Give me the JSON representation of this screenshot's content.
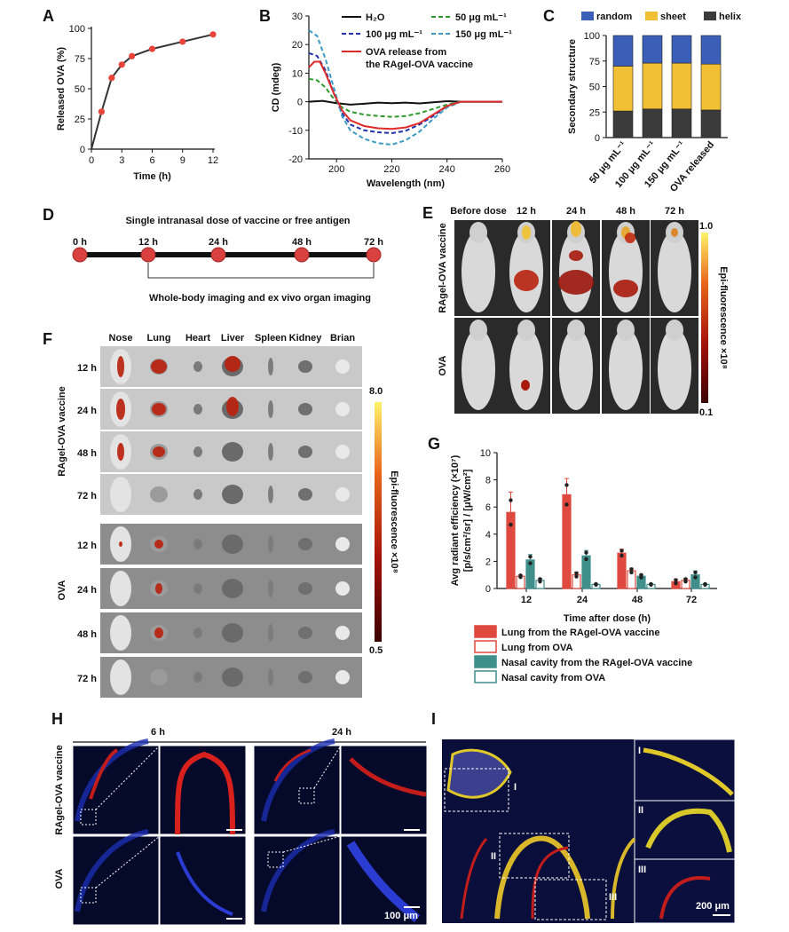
{
  "panel_labels": {
    "a": "A",
    "b": "B",
    "c": "C",
    "d": "D",
    "e": "E",
    "f": "F",
    "g": "G",
    "h": "H",
    "i": "I"
  },
  "chart_data": [
    {
      "panel": "A",
      "type": "line",
      "xlabel": "Time (h)",
      "ylabel": "Released OVA (%)",
      "xlim": [
        0,
        12
      ],
      "ylim": [
        0,
        100
      ],
      "xticks": [
        0,
        3,
        6,
        9,
        12
      ],
      "yticks": [
        0,
        25,
        50,
        75,
        100
      ],
      "x": [
        0,
        1,
        2,
        3,
        4,
        6,
        9,
        12
      ],
      "y": [
        0,
        31,
        59,
        70,
        77,
        83,
        89,
        95
      ],
      "marker_color": "#e8443a",
      "line_color": "#333333"
    },
    {
      "panel": "B",
      "type": "line",
      "xlabel": "Wavelength (nm)",
      "ylabel": "CD (mdeg)",
      "xlim": [
        190,
        260
      ],
      "ylim": [
        -20,
        30
      ],
      "xticks": [
        200,
        220,
        240,
        260
      ],
      "yticks": [
        -20,
        -10,
        0,
        10,
        20,
        30
      ],
      "legend": [
        "H₂O",
        "50 μg mL⁻¹",
        "100 μg mL⁻¹",
        "150 μg mL⁻¹",
        "OVA release from",
        "the RAgel-OVA vaccine"
      ],
      "series": [
        {
          "name": "H₂O",
          "color": "#111111",
          "dash": false,
          "x": [
            190,
            195,
            200,
            205,
            210,
            215,
            220,
            225,
            230,
            235,
            240,
            245,
            250,
            255,
            260
          ],
          "y": [
            0,
            0.3,
            -0.5,
            -1,
            -0.7,
            -0.3,
            -0.5,
            -0.3,
            -0.6,
            -0.2,
            0.2,
            0,
            0,
            0,
            0
          ]
        },
        {
          "name": "50 μg mL⁻¹",
          "color": "#2e9a2e",
          "dash": true,
          "x": [
            190,
            193,
            196,
            199,
            202,
            205,
            210,
            215,
            220,
            225,
            230,
            235,
            240,
            245,
            250,
            260
          ],
          "y": [
            8,
            7.5,
            5,
            1,
            -2,
            -3.5,
            -4.5,
            -5,
            -5.3,
            -5,
            -4,
            -2.5,
            -1,
            0,
            0,
            0
          ]
        },
        {
          "name": "100 μg mL⁻¹",
          "color": "#2233aa",
          "dash": true,
          "x": [
            190,
            193,
            196,
            199,
            202,
            205,
            210,
            215,
            220,
            225,
            230,
            235,
            240,
            245,
            250,
            260
          ],
          "y": [
            17,
            16,
            11,
            3,
            -4,
            -8,
            -10,
            -10.7,
            -11,
            -10.2,
            -8,
            -5,
            -1.5,
            0,
            0,
            0
          ]
        },
        {
          "name": "150 μg mL⁻¹",
          "color": "#3a9ac4",
          "dash": true,
          "x": [
            190,
            193,
            196,
            199,
            202,
            205,
            210,
            215,
            220,
            225,
            230,
            235,
            240,
            245,
            250,
            260
          ],
          "y": [
            25,
            23,
            15,
            5,
            -5,
            -10,
            -13,
            -14.5,
            -15,
            -13.5,
            -10.5,
            -6,
            -2,
            0,
            0,
            0
          ]
        },
        {
          "name": "OVA release from the RAgel-OVA vaccine",
          "color": "#e02a2a",
          "dash": false,
          "x": [
            190,
            192,
            194,
            196,
            199,
            202,
            205,
            210,
            215,
            220,
            225,
            230,
            235,
            240,
            245,
            250,
            260
          ],
          "y": [
            12,
            14,
            14,
            10,
            3,
            -3,
            -6.5,
            -8.5,
            -9.3,
            -9.5,
            -9,
            -7.5,
            -4.5,
            -1.5,
            0,
            0,
            0
          ]
        }
      ]
    },
    {
      "panel": "C",
      "type": "bar",
      "stacked": true,
      "ylabel": "Secondary structure",
      "ylim": [
        0,
        100
      ],
      "yticks": [
        0,
        25,
        50,
        75,
        100
      ],
      "categories": [
        "50 μg mL⁻¹",
        "100 μg mL⁻¹",
        "150 μg mL⁻¹",
        "OVA released"
      ],
      "legend": [
        "random",
        "sheet",
        "helix"
      ],
      "series": [
        {
          "name": "helix",
          "color": "#3b3b3b",
          "values": [
            26,
            28,
            28,
            27
          ]
        },
        {
          "name": "sheet",
          "color": "#f2c034",
          "values": [
            44,
            45,
            45,
            45
          ]
        },
        {
          "name": "random",
          "color": "#3b5fb8",
          "values": [
            30,
            27,
            27,
            28
          ]
        }
      ]
    },
    {
      "panel": "G",
      "type": "bar",
      "xlabel": "Time after dose (h)",
      "ylabel": "Avg radiant efficiency (×10⁷)",
      "ylabel2": "[p/s/cm²/sr] / [μW/cm²]",
      "ylim": [
        0,
        10
      ],
      "yticks": [
        0,
        2,
        4,
        6,
        8,
        10
      ],
      "categories": [
        "12",
        "24",
        "48",
        "72"
      ],
      "series": [
        {
          "name": "Lung from the RAgel-OVA vaccine",
          "fill": "#e0493f",
          "stroke": "#e0493f",
          "values": [
            5.6,
            6.9,
            2.6,
            0.5
          ],
          "errors": [
            1.5,
            1.2,
            0.3,
            0.2
          ]
        },
        {
          "name": "Lung from OVA",
          "fill": "#ffffff",
          "stroke": "#e0493f",
          "values": [
            0.9,
            1.0,
            1.3,
            0.6
          ],
          "errors": [
            0.1,
            0.2,
            0.2,
            0.15
          ]
        },
        {
          "name": "Nasal cavity from the RAgel-OVA vaccine",
          "fill": "#3f8f8c",
          "stroke": "#3f8f8c",
          "values": [
            2.1,
            2.4,
            0.9,
            1.0
          ],
          "errors": [
            0.4,
            0.4,
            0.15,
            0.3
          ]
        },
        {
          "name": "Nasal cavity from OVA",
          "fill": "#ffffff",
          "stroke": "#3f8f8c",
          "values": [
            0.6,
            0.3,
            0.3,
            0.3
          ],
          "errors": [
            0.15,
            0.05,
            0.05,
            0.05
          ]
        }
      ]
    }
  ],
  "panel_d": {
    "title": "Single intranasal dose of vaccine or free antigen",
    "timepoints": [
      "0 h",
      "12 h",
      "24 h",
      "48 h",
      "72 h"
    ],
    "note": "Whole-body imaging and ex vivo organ imaging"
  },
  "panel_e": {
    "columns": [
      "Before dose",
      "12 h",
      "24 h",
      "48 h",
      "72 h"
    ],
    "rows": [
      "RAgel-OVA vaccine",
      "OVA"
    ],
    "scale_label": "Epi-fluorescence ×10⁸",
    "scale_max": "1.0",
    "scale_min": "0.1"
  },
  "panel_f": {
    "columns": [
      "Nose",
      "Lung",
      "Heart",
      "Liver",
      "Spleen",
      "Kidney",
      "Brian"
    ],
    "times": [
      "12 h",
      "24 h",
      "48 h",
      "72 h"
    ],
    "groups": [
      "RAgel-OVA vaccine",
      "OVA"
    ],
    "scale_label": "Epi-fluorescence ×10⁸",
    "scale_max": "8.0",
    "scale_min": "0.5"
  },
  "panel_h": {
    "columns": [
      "6 h",
      "24 h"
    ],
    "rows": [
      "RAgel-OVA vaccine",
      "OVA"
    ],
    "scale_bar": "100 μm"
  },
  "panel_i": {
    "regions": [
      "I",
      "II",
      "III"
    ],
    "scale_bar": "200 μm"
  }
}
